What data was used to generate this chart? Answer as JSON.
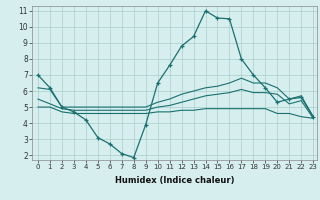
{
  "xlabel": "Humidex (Indice chaleur)",
  "ylabel": "",
  "xlim": [
    -0.5,
    23.3
  ],
  "ylim": [
    1.7,
    11.3
  ],
  "yticks": [
    2,
    3,
    4,
    5,
    6,
    7,
    8,
    9,
    10,
    11
  ],
  "xticks": [
    0,
    1,
    2,
    3,
    4,
    5,
    6,
    7,
    8,
    9,
    10,
    11,
    12,
    13,
    14,
    15,
    16,
    17,
    18,
    19,
    20,
    21,
    22,
    23
  ],
  "background_color": "#d6eeee",
  "grid_color": "#aacccc",
  "line_color": "#1a7070",
  "line1_x": [
    0,
    1,
    2,
    3,
    4,
    5,
    6,
    7,
    8,
    9,
    10,
    11,
    12,
    13,
    14,
    15,
    16,
    17,
    18,
    19,
    20,
    21,
    22,
    23
  ],
  "line1_y": [
    7.0,
    6.2,
    5.0,
    4.7,
    4.2,
    3.1,
    2.7,
    2.1,
    1.85,
    3.9,
    6.5,
    7.6,
    8.8,
    9.4,
    11.0,
    10.55,
    10.5,
    8.0,
    7.0,
    6.2,
    5.3,
    5.5,
    5.6,
    4.4
  ],
  "line2_x": [
    0,
    1,
    2,
    3,
    4,
    5,
    6,
    7,
    8,
    9,
    10,
    11,
    12,
    13,
    14,
    15,
    16,
    17,
    18,
    19,
    20,
    21,
    22,
    23
  ],
  "line2_y": [
    6.2,
    6.1,
    5.0,
    5.0,
    5.0,
    5.0,
    5.0,
    5.0,
    5.0,
    5.0,
    5.3,
    5.5,
    5.8,
    6.0,
    6.2,
    6.3,
    6.5,
    6.8,
    6.5,
    6.5,
    6.2,
    5.5,
    5.7,
    4.4
  ],
  "line3_x": [
    0,
    1,
    2,
    3,
    4,
    5,
    6,
    7,
    8,
    9,
    10,
    11,
    12,
    13,
    14,
    15,
    16,
    17,
    18,
    19,
    20,
    21,
    22,
    23
  ],
  "line3_y": [
    5.5,
    5.2,
    4.9,
    4.8,
    4.8,
    4.8,
    4.8,
    4.8,
    4.8,
    4.8,
    5.0,
    5.1,
    5.3,
    5.5,
    5.7,
    5.8,
    5.9,
    6.1,
    5.9,
    5.9,
    5.8,
    5.2,
    5.4,
    4.3
  ],
  "line4_x": [
    0,
    1,
    2,
    3,
    4,
    5,
    6,
    7,
    8,
    9,
    10,
    11,
    12,
    13,
    14,
    15,
    16,
    17,
    18,
    19,
    20,
    21,
    22,
    23
  ],
  "line4_y": [
    5.0,
    5.0,
    4.7,
    4.6,
    4.6,
    4.6,
    4.6,
    4.6,
    4.6,
    4.6,
    4.7,
    4.7,
    4.8,
    4.8,
    4.9,
    4.9,
    4.9,
    4.9,
    4.9,
    4.9,
    4.6,
    4.6,
    4.4,
    4.3
  ]
}
